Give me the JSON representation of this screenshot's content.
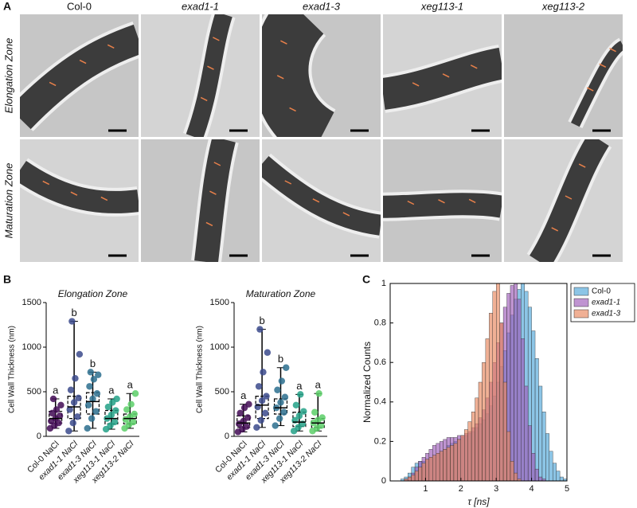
{
  "panel_a": {
    "label": "A",
    "columns": [
      "Col-0",
      "exad1-1",
      "exad1-3",
      "xeg113-1",
      "xeg113-2"
    ],
    "rows": [
      "Elongation Zone",
      "Maturation Zone"
    ]
  },
  "chart_data": [
    {
      "type": "box",
      "panel_label": "B",
      "title": "Elongation Zone",
      "ylabel": "Cell Wall Thickness (nm)",
      "ylim": [
        0,
        1500
      ],
      "yticks": [
        0,
        500,
        1000,
        1500
      ],
      "categories": [
        "Col-0 NaCl",
        "exad1-1 NaCl",
        "exad1-3 NaCl",
        "xeg113-1 NaCl",
        "xeg113-2 NaCl"
      ],
      "boxes": [
        {
          "min": 90,
          "q1": 150,
          "median": 200,
          "q3": 280,
          "max": 420,
          "letter": "a",
          "color": "#420a55",
          "points": [
            90,
            120,
            150,
            170,
            200,
            230,
            260,
            300,
            350,
            420
          ]
        },
        {
          "min": 60,
          "q1": 200,
          "median": 330,
          "q3": 450,
          "max": 1290,
          "letter": "b",
          "color": "#3b4a8c",
          "points": [
            60,
            150,
            220,
            300,
            380,
            430,
            520,
            650,
            920,
            1290
          ]
        },
        {
          "min": 90,
          "q1": 250,
          "median": 390,
          "q3": 490,
          "max": 720,
          "letter": "b",
          "color": "#2c6f8e",
          "points": [
            90,
            200,
            280,
            350,
            420,
            480,
            560,
            640,
            690,
            720
          ]
        },
        {
          "min": 80,
          "q1": 140,
          "median": 200,
          "q3": 290,
          "max": 420,
          "letter": "a",
          "color": "#23a187",
          "points": [
            80,
            120,
            160,
            200,
            240,
            290,
            330,
            380,
            420
          ]
        },
        {
          "min": 90,
          "q1": 140,
          "median": 200,
          "q3": 250,
          "max": 480,
          "letter": "a",
          "color": "#5ccf68",
          "points": [
            90,
            130,
            160,
            190,
            220,
            250,
            300,
            360,
            480
          ]
        }
      ]
    },
    {
      "type": "box",
      "title": "Maturation Zone",
      "ylabel": "Cell Wall Thickness (nm)",
      "ylim": [
        0,
        1500
      ],
      "yticks": [
        0,
        500,
        1000,
        1500
      ],
      "categories": [
        "Col-0 NaCl",
        "exad1-1 NaCl",
        "exad1-3 NaCl",
        "xeg113-1 NaCl",
        "xeg113-2 NaCl"
      ],
      "boxes": [
        {
          "min": 50,
          "q1": 100,
          "median": 150,
          "q3": 230,
          "max": 360,
          "letter": "a",
          "color": "#420a55",
          "points": [
            50,
            80,
            110,
            140,
            170,
            210,
            260,
            320,
            360
          ]
        },
        {
          "min": 100,
          "q1": 200,
          "median": 350,
          "q3": 450,
          "max": 1200,
          "letter": "b",
          "color": "#3b4a8c",
          "points": [
            100,
            180,
            260,
            330,
            400,
            450,
            560,
            720,
            940,
            1200
          ]
        },
        {
          "min": 120,
          "q1": 250,
          "median": 320,
          "q3": 420,
          "max": 770,
          "letter": "b",
          "color": "#2c6f8e",
          "points": [
            120,
            200,
            270,
            320,
            380,
            440,
            520,
            620,
            770
          ]
        },
        {
          "min": 60,
          "q1": 110,
          "median": 160,
          "q3": 270,
          "max": 470,
          "letter": "a",
          "color": "#23a187",
          "points": [
            60,
            100,
            140,
            180,
            230,
            280,
            350,
            470
          ]
        },
        {
          "min": 60,
          "q1": 100,
          "median": 150,
          "q3": 200,
          "max": 480,
          "letter": "a",
          "color": "#5ccf68",
          "points": [
            60,
            90,
            120,
            150,
            180,
            210,
            270,
            480
          ]
        }
      ]
    },
    {
      "type": "histogram",
      "panel_label": "C",
      "xlabel": "τ [ns]",
      "ylabel": "Normalized Counts",
      "xlim": [
        0,
        5
      ],
      "xticks": [
        1,
        2,
        3,
        4,
        5
      ],
      "ylim": [
        0,
        1
      ],
      "yticks": [
        0,
        0.2,
        0.4,
        0.6,
        0.8,
        1
      ],
      "legend": "outside-right",
      "bins": [
        0,
        0.1,
        0.2,
        0.3,
        0.4,
        0.5,
        0.6,
        0.7,
        0.8,
        0.9,
        1,
        1.1,
        1.2,
        1.3,
        1.4,
        1.5,
        1.6,
        1.7,
        1.8,
        1.9,
        2,
        2.1,
        2.2,
        2.3,
        2.4,
        2.5,
        2.6,
        2.7,
        2.8,
        2.9,
        3,
        3.1,
        3.2,
        3.3,
        3.4,
        3.5,
        3.6,
        3.7,
        3.8,
        3.9,
        4,
        4.1,
        4.2,
        4.3,
        4.4,
        4.5,
        4.6,
        4.7,
        4.8,
        4.9,
        5
      ],
      "series": [
        {
          "name": "Col-0",
          "color": "#4ea6d8",
          "values": [
            0,
            0,
            0,
            0.01,
            0.02,
            0.04,
            0.07,
            0.09,
            0.1,
            0.1,
            0.11,
            0.12,
            0.13,
            0.14,
            0.15,
            0.16,
            0.18,
            0.19,
            0.2,
            0.21,
            0.22,
            0.23,
            0.24,
            0.25,
            0.27,
            0.29,
            0.31,
            0.34,
            0.38,
            0.43,
            0.5,
            0.58,
            0.66,
            0.75,
            0.84,
            0.92,
            0.97,
            1,
            0.96,
            0.88,
            0.76,
            0.62,
            0.48,
            0.35,
            0.24,
            0.15,
            0.09,
            0.05,
            0.02,
            0.01
          ]
        },
        {
          "name": "exad1-1",
          "color": "#9d5bb8",
          "values": [
            0,
            0,
            0,
            0,
            0.01,
            0.02,
            0.04,
            0.07,
            0.1,
            0.12,
            0.14,
            0.16,
            0.18,
            0.19,
            0.2,
            0.21,
            0.22,
            0.22,
            0.22,
            0.23,
            0.23,
            0.24,
            0.25,
            0.27,
            0.29,
            0.32,
            0.36,
            0.42,
            0.5,
            0.6,
            0.7,
            0.8,
            0.88,
            0.95,
            0.99,
            1,
            0.92,
            0.72,
            0.48,
            0.28,
            0.14,
            0.06,
            0.02,
            0.01,
            0,
            0,
            0,
            0,
            0,
            0
          ]
        },
        {
          "name": "exad1-3",
          "color": "#e8865c",
          "values": [
            0,
            0,
            0,
            0,
            0.01,
            0.02,
            0.03,
            0.05,
            0.07,
            0.09,
            0.11,
            0.12,
            0.13,
            0.14,
            0.15,
            0.16,
            0.17,
            0.18,
            0.19,
            0.21,
            0.23,
            0.26,
            0.3,
            0.35,
            0.42,
            0.5,
            0.6,
            0.72,
            0.85,
            0.96,
            1,
            0.8,
            0.5,
            0.25,
            0.1,
            0.04,
            0.01,
            0,
            0,
            0,
            0,
            0,
            0,
            0,
            0,
            0,
            0,
            0,
            0,
            0
          ]
        }
      ]
    }
  ]
}
